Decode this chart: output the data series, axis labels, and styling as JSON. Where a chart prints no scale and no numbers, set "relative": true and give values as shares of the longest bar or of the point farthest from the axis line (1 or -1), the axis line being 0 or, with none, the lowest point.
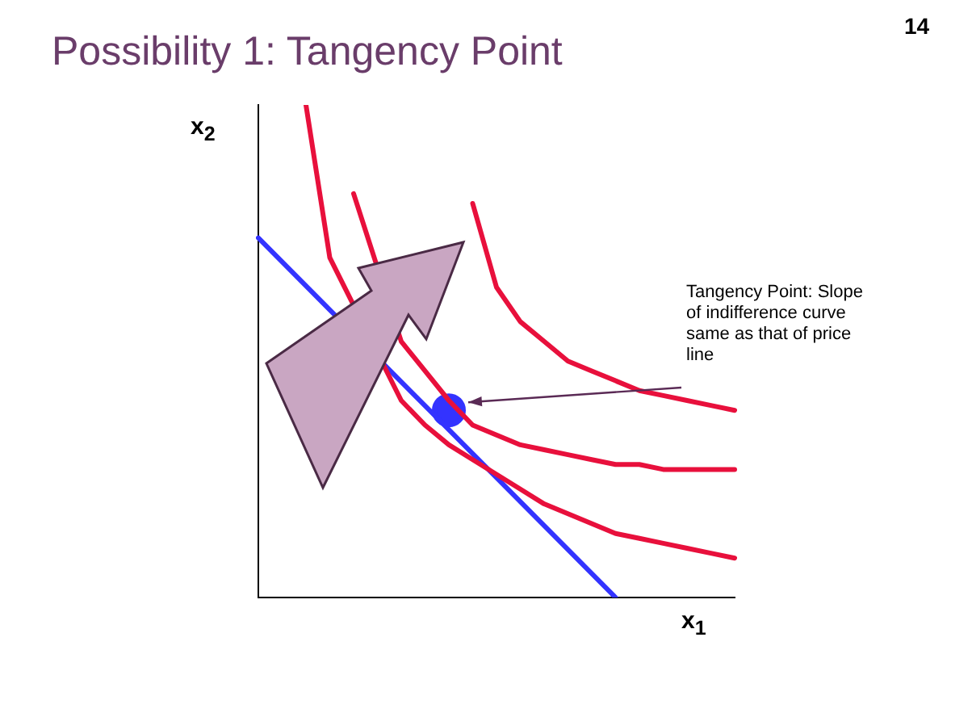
{
  "chart_data": {
    "type": "line",
    "title": "Possibility 1: Tangency Point",
    "xlabel": "x$_{1}$",
    "ylabel": "x$_{2}$",
    "relative": true,
    "legend": false,
    "grid": false,
    "annotations": [
      "14",
      "Tangency Point: Slope of indifference curve same as that of price line"
    ],
    "categories": [
      null,
      null,
      null,
      null,
      null,
      null,
      null,
      null,
      null,
      null,
      null,
      null,
      null,
      null,
      null,
      null,
      null,
      null,
      null,
      null,
      null
    ],
    "series": [
      {
        "color": "#e8103c",
        "values": [
          null,
          null,
          1.0,
          0.69,
          null,
          null,
          0.4,
          0.35,
          0.31,
          0.28,
          0.25,
          0.22,
          0.19,
          0.17,
          0.15,
          0.13,
          0.12,
          0.11,
          0.1,
          0.09,
          0.08
        ]
      },
      {
        "color": "#e8103c",
        "values": [
          null,
          null,
          null,
          null,
          0.82,
          null,
          0.52,
          0.46,
          0.4,
          0.35,
          0.33,
          0.31,
          0.3,
          0.29,
          0.28,
          0.27,
          0.27,
          0.26,
          0.26,
          0.26,
          0.26
        ]
      },
      {
        "color": "#e8103c",
        "values": [
          null,
          null,
          null,
          null,
          null,
          null,
          null,
          null,
          null,
          0.8,
          0.63,
          0.56,
          0.52,
          0.48,
          0.46,
          0.44,
          0.42,
          0.41,
          0.4,
          0.39,
          0.38
        ]
      },
      {
        "color": "#3333ff",
        "values": [
          0.73,
          null,
          null,
          null,
          null,
          null,
          null,
          null,
          null,
          null,
          null,
          null,
          null,
          null,
          null,
          0,
          null,
          null,
          null,
          null,
          null
        ]
      },
      {
        "color": "#3333ff",
        "marker": "circle",
        "values": [
          null,
          null,
          null,
          null,
          null,
          null,
          null,
          null,
          0.38,
          null,
          null,
          null,
          null,
          null,
          null,
          null,
          null,
          null,
          null,
          null,
          null
        ]
      }
    ]
  }
}
